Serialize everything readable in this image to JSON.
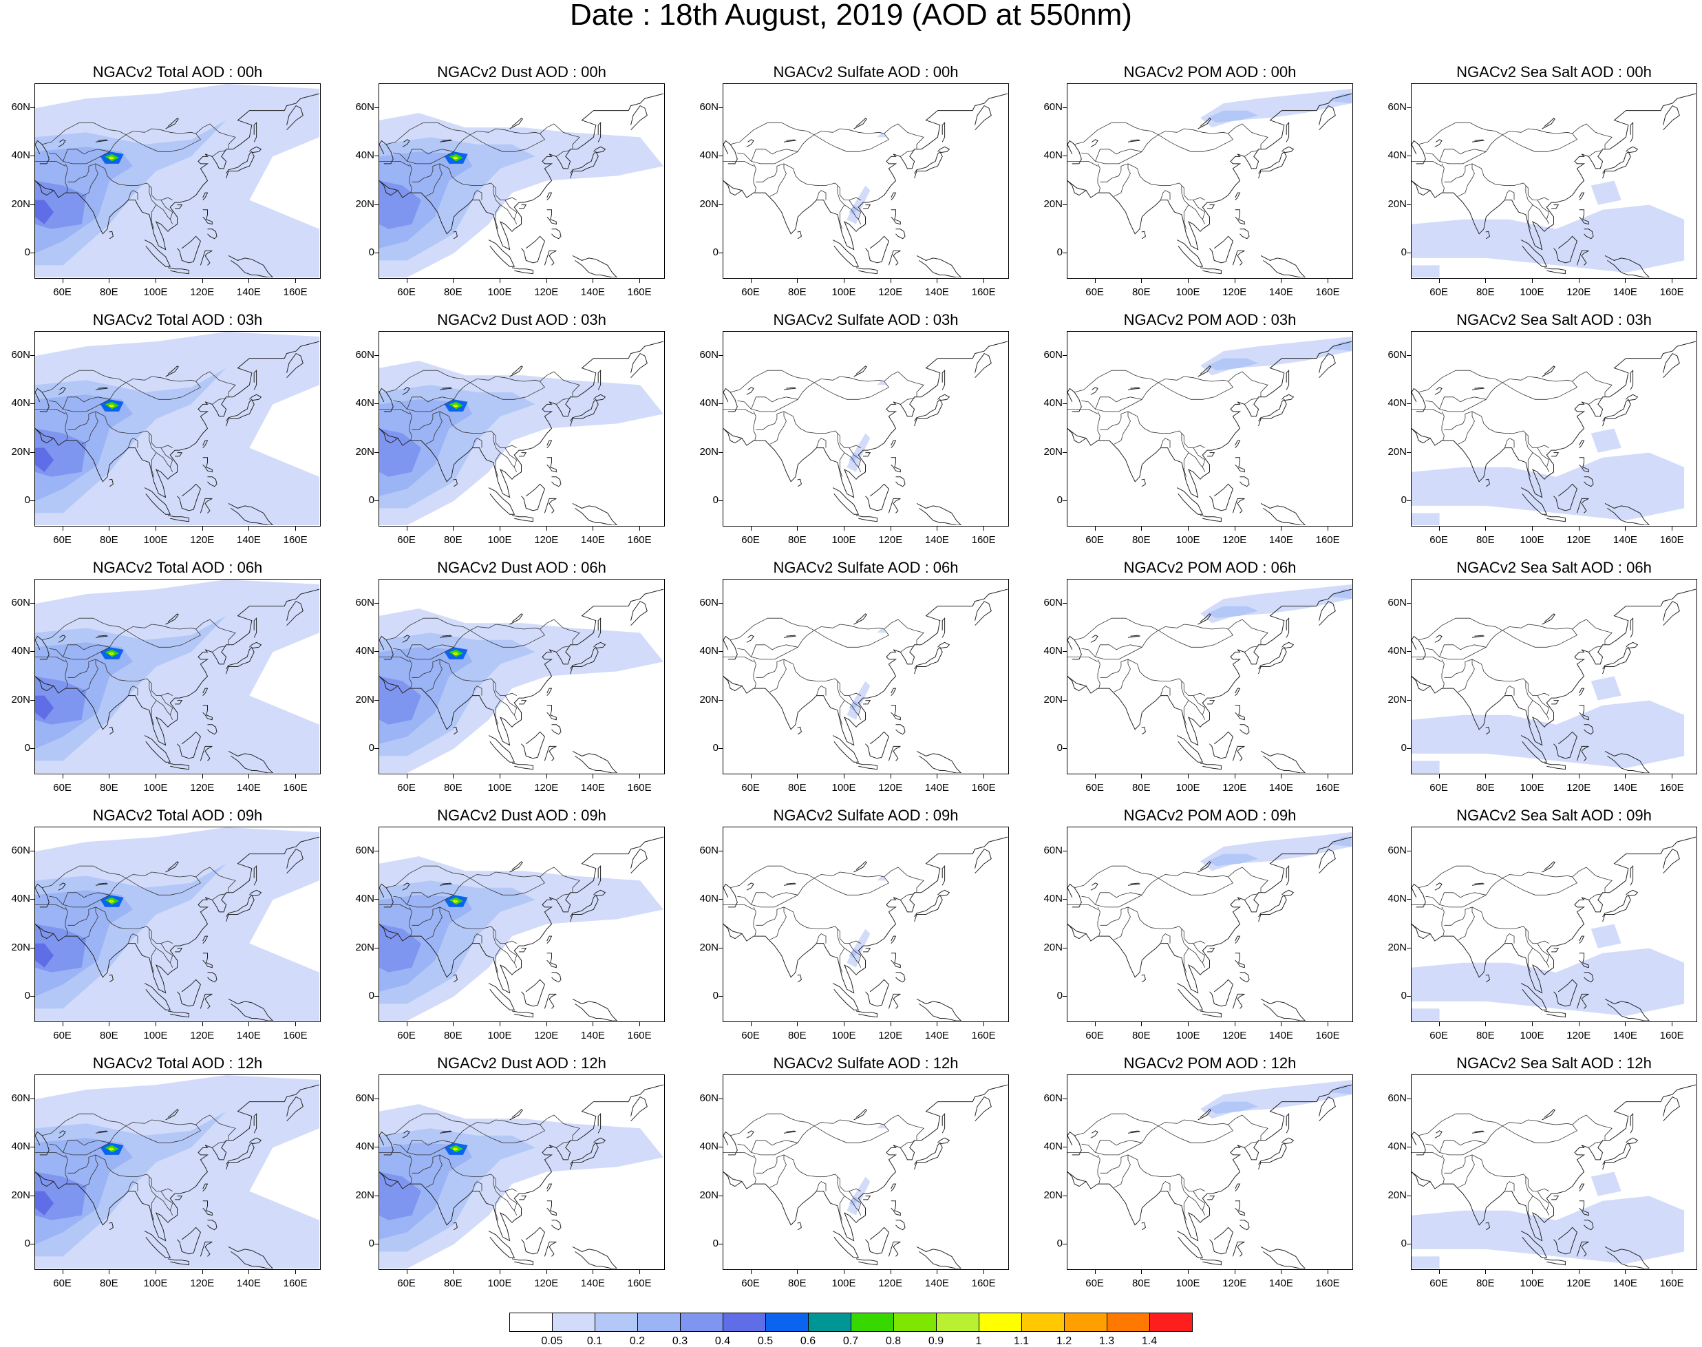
{
  "figure": {
    "title": "Date : 18th August, 2019 (AOD at 550nm)"
  },
  "axes": {
    "lat_ticks": [
      "60N",
      "40N",
      "20N",
      "0"
    ],
    "lat_values": [
      60,
      40,
      20,
      0
    ],
    "lon_ticks": [
      "60E",
      "80E",
      "100E",
      "120E",
      "140E",
      "160E"
    ],
    "lon_values": [
      60,
      80,
      100,
      120,
      140,
      160
    ],
    "lon_range": [
      48,
      170
    ],
    "lat_range": [
      -10,
      70
    ]
  },
  "panels": [
    [
      {
        "title": "NGACv2 Total AOD : 00h",
        "species": "total"
      },
      {
        "title": "NGACv2 Dust AOD : 00h",
        "species": "dust"
      },
      {
        "title": "NGACv2 Sulfate AOD : 00h",
        "species": "sulfate"
      },
      {
        "title": "NGACv2 POM AOD : 00h",
        "species": "pom"
      },
      {
        "title": "NGACv2 Sea Salt AOD : 00h",
        "species": "seasalt"
      }
    ],
    [
      {
        "title": "NGACv2 Total AOD : 03h",
        "species": "total"
      },
      {
        "title": "NGACv2 Dust AOD : 03h",
        "species": "dust"
      },
      {
        "title": "NGACv2 Sulfate AOD : 03h",
        "species": "sulfate"
      },
      {
        "title": "NGACv2 POM AOD : 03h",
        "species": "pom"
      },
      {
        "title": "NGACv2 Sea Salt AOD : 03h",
        "species": "seasalt"
      }
    ],
    [
      {
        "title": "NGACv2 Total AOD : 06h",
        "species": "total"
      },
      {
        "title": "NGACv2 Dust AOD : 06h",
        "species": "dust"
      },
      {
        "title": "NGACv2 Sulfate AOD : 06h",
        "species": "sulfate"
      },
      {
        "title": "NGACv2 POM AOD : 06h",
        "species": "pom"
      },
      {
        "title": "NGACv2 Sea Salt AOD : 06h",
        "species": "seasalt"
      }
    ],
    [
      {
        "title": "NGACv2 Total AOD : 09h",
        "species": "total"
      },
      {
        "title": "NGACv2 Dust AOD : 09h",
        "species": "dust"
      },
      {
        "title": "NGACv2 Sulfate AOD : 09h",
        "species": "sulfate"
      },
      {
        "title": "NGACv2 POM AOD : 09h",
        "species": "pom"
      },
      {
        "title": "NGACv2 Sea Salt  AOD : 09h",
        "species": "seasalt"
      }
    ],
    [
      {
        "title": "NGACv2 Total AOD  : 12h",
        "species": "total"
      },
      {
        "title": "NGACv2 Dust AOD : 12h",
        "species": "dust"
      },
      {
        "title": "NGACv2 Sulfate AOD : 12h",
        "species": "sulfate"
      },
      {
        "title": "NGACv2 POM  AOD : 12h",
        "species": "pom"
      },
      {
        "title": "NGACv2 Sea Salt  AOD : 12h",
        "species": "seasalt"
      }
    ]
  ],
  "colorbar": {
    "labels": [
      "0.05",
      "0.1",
      "0.2",
      "0.3",
      "0.4",
      "0.5",
      "0.6",
      "0.7",
      "0.8",
      "0.9",
      "1",
      "1.1",
      "1.2",
      "1.3",
      "1.4"
    ],
    "colors": [
      "#ffffff",
      "#d2dcfa",
      "#b4c8f8",
      "#9bb4f5",
      "#7f96f0",
      "#5f6ee6",
      "#0a64f0",
      "#009696",
      "#37d700",
      "#7ee600",
      "#b9f032",
      "#ffff00",
      "#ffc800",
      "#ffa000",
      "#ff7800",
      "#ff1e1e"
    ]
  }
}
